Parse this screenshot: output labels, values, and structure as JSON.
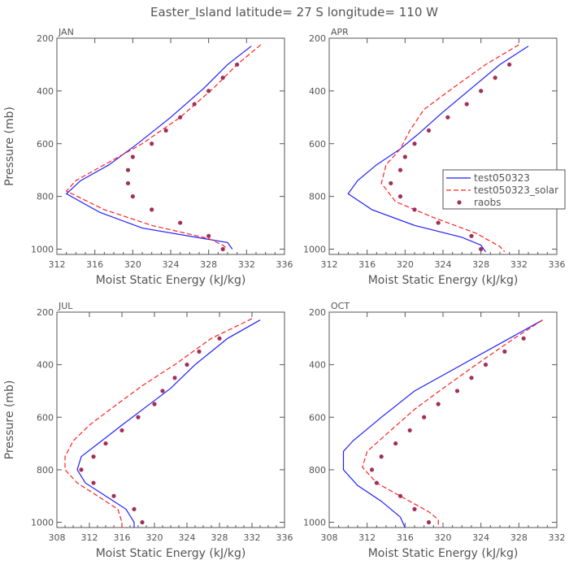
{
  "figure_title": "Easter_Island  latitude= 27 S longitude= 110 W",
  "colors": {
    "test": "#1f1fff",
    "solar": "#ff2020",
    "raobs": "#a0305a",
    "axis": "#555555"
  },
  "legend": {
    "entries": [
      "test050323",
      "test050323_solar",
      "raobs"
    ],
    "placement": "right side of APR panel"
  },
  "chart_data": [
    {
      "type": "line",
      "title": "JAN",
      "xlabel": "Moist Static Energy (kJ/kg)",
      "ylabel": "Pressure (mb)",
      "xlim": [
        312,
        336
      ],
      "ylim": [
        1020,
        200
      ],
      "y_inverted": true,
      "xticks": [
        312,
        316,
        320,
        324,
        328,
        332,
        336
      ],
      "yticks": [
        200,
        400,
        600,
        800,
        1000
      ],
      "series": [
        {
          "name": "test050323",
          "style": "solid",
          "color": "#1f1fff",
          "points": [
            [
              332.5,
              230
            ],
            [
              330,
              300
            ],
            [
              327.5,
              390
            ],
            [
              324,
              500
            ],
            [
              320.5,
              600
            ],
            [
              317.5,
              680
            ],
            [
              314.5,
              740
            ],
            [
              313,
              790
            ],
            [
              316.5,
              860
            ],
            [
              321,
              920
            ],
            [
              327.5,
              960
            ],
            [
              330,
              975
            ],
            [
              330.5,
              1000
            ]
          ]
        },
        {
          "name": "test050323_solar",
          "style": "dashed",
          "color": "#ff2020",
          "points": [
            [
              333.5,
              225
            ],
            [
              331,
              300
            ],
            [
              328.5,
              390
            ],
            [
              325,
              500
            ],
            [
              321,
              600
            ],
            [
              317,
              680
            ],
            [
              314,
              740
            ],
            [
              313,
              780
            ],
            [
              317,
              850
            ],
            [
              322,
              910
            ],
            [
              328,
              960
            ],
            [
              329.5,
              985
            ],
            [
              330,
              1000
            ]
          ]
        },
        {
          "name": "raobs",
          "style": "points",
          "color": "#a0305a",
          "points": [
            [
              331,
              300
            ],
            [
              329.5,
              350
            ],
            [
              328,
              400
            ],
            [
              326.5,
              450
            ],
            [
              325,
              500
            ],
            [
              323.5,
              550
            ],
            [
              322,
              600
            ],
            [
              320,
              650
            ],
            [
              319.5,
              700
            ],
            [
              319.5,
              750
            ],
            [
              320,
              800
            ],
            [
              322,
              850
            ],
            [
              325,
              900
            ],
            [
              328,
              950
            ],
            [
              329.5,
              1000
            ]
          ]
        }
      ]
    },
    {
      "type": "line",
      "title": "APR",
      "xlabel": "Moist Static Energy (kJ/kg)",
      "ylabel": "",
      "xlim": [
        312,
        336
      ],
      "ylim": [
        1020,
        200
      ],
      "y_inverted": true,
      "xticks": [
        312,
        316,
        320,
        324,
        328,
        332,
        336
      ],
      "yticks": [
        200,
        400,
        600,
        800,
        1000
      ],
      "series": [
        {
          "name": "test050323",
          "style": "solid",
          "color": "#1f1fff",
          "points": [
            [
              333,
              230
            ],
            [
              330,
              300
            ],
            [
              327,
              390
            ],
            [
              324,
              480
            ],
            [
              321.5,
              560
            ],
            [
              319.5,
              620
            ],
            [
              317,
              680
            ],
            [
              315,
              740
            ],
            [
              314,
              790
            ],
            [
              316.5,
              850
            ],
            [
              321,
              910
            ],
            [
              326,
              955
            ],
            [
              328,
              985
            ],
            [
              328.5,
              1010
            ]
          ]
        },
        {
          "name": "test050323_solar",
          "style": "dashed",
          "color": "#ff2020",
          "points": [
            [
              332,
              225
            ],
            [
              328.5,
              300
            ],
            [
              325,
              390
            ],
            [
              322,
              470
            ],
            [
              320.5,
              550
            ],
            [
              319.5,
              620
            ],
            [
              318,
              680
            ],
            [
              317.5,
              750
            ],
            [
              319,
              820
            ],
            [
              323,
              880
            ],
            [
              327.5,
              940
            ],
            [
              330,
              990
            ],
            [
              330.5,
              1010
            ]
          ]
        },
        {
          "name": "raobs",
          "style": "points",
          "color": "#a0305a",
          "points": [
            [
              331,
              300
            ],
            [
              329.5,
              350
            ],
            [
              328,
              400
            ],
            [
              326.5,
              450
            ],
            [
              324.5,
              500
            ],
            [
              322.5,
              550
            ],
            [
              321,
              600
            ],
            [
              320,
              650
            ],
            [
              319.5,
              700
            ],
            [
              318.5,
              750
            ],
            [
              319.5,
              800
            ],
            [
              321,
              850
            ],
            [
              323.5,
              900
            ],
            [
              327,
              950
            ],
            [
              328,
              1000
            ]
          ]
        }
      ]
    },
    {
      "type": "line",
      "title": "JUL",
      "xlabel": "Moist Static Energy (kJ/kg)",
      "ylabel": "Pressure (mb)",
      "xlim": [
        308,
        336
      ],
      "ylim": [
        1020,
        200
      ],
      "y_inverted": true,
      "xticks": [
        308,
        312,
        316,
        320,
        324,
        328,
        332,
        336
      ],
      "yticks": [
        200,
        400,
        600,
        800,
        1000
      ],
      "series": [
        {
          "name": "test050323",
          "style": "solid",
          "color": "#1f1fff",
          "points": [
            [
              333,
              230
            ],
            [
              329,
              300
            ],
            [
              325,
              400
            ],
            [
              322,
              490
            ],
            [
              319,
              560
            ],
            [
              316,
              630
            ],
            [
              313.5,
              690
            ],
            [
              311,
              750
            ],
            [
              310.5,
              800
            ],
            [
              311.5,
              850
            ],
            [
              314,
              900
            ],
            [
              316.5,
              950
            ],
            [
              317.5,
              1000
            ],
            [
              317.5,
              1020
            ]
          ]
        },
        {
          "name": "test050323_solar",
          "style": "dashed",
          "color": "#ff2020",
          "points": [
            [
              332,
              225
            ],
            [
              327,
              300
            ],
            [
              322.5,
              400
            ],
            [
              318.5,
              480
            ],
            [
              315,
              560
            ],
            [
              312,
              630
            ],
            [
              310,
              690
            ],
            [
              309,
              750
            ],
            [
              309,
              800
            ],
            [
              310.5,
              850
            ],
            [
              313,
              900
            ],
            [
              315.5,
              950
            ],
            [
              316,
              1000
            ],
            [
              316,
              1020
            ]
          ]
        },
        {
          "name": "raobs",
          "style": "points",
          "color": "#a0305a",
          "points": [
            [
              328,
              300
            ],
            [
              325.5,
              350
            ],
            [
              324,
              400
            ],
            [
              322.5,
              450
            ],
            [
              321,
              500
            ],
            [
              320,
              550
            ],
            [
              318,
              600
            ],
            [
              316,
              650
            ],
            [
              314,
              700
            ],
            [
              312.5,
              750
            ],
            [
              311,
              800
            ],
            [
              312.5,
              850
            ],
            [
              315,
              900
            ],
            [
              317.5,
              950
            ],
            [
              318.5,
              1000
            ]
          ]
        }
      ]
    },
    {
      "type": "line",
      "title": "OCT",
      "xlabel": "Moist Static Energy (kJ/kg)",
      "ylabel": "",
      "xlim": [
        308,
        332
      ],
      "ylim": [
        1020,
        200
      ],
      "y_inverted": true,
      "xticks": [
        308,
        312,
        316,
        320,
        324,
        328,
        332
      ],
      "yticks": [
        200,
        400,
        600,
        800,
        1000
      ],
      "series": [
        {
          "name": "test050323",
          "style": "solid",
          "color": "#1f1fff",
          "points": [
            [
              330.5,
              230
            ],
            [
              327,
              300
            ],
            [
              322,
              400
            ],
            [
              317,
              500
            ],
            [
              313.5,
              600
            ],
            [
              310.5,
              690
            ],
            [
              309.5,
              730
            ],
            [
              309.5,
              800
            ],
            [
              311,
              860
            ],
            [
              313.5,
              920
            ],
            [
              315.5,
              980
            ],
            [
              316,
              1020
            ]
          ]
        },
        {
          "name": "test050323_solar",
          "style": "dashed",
          "color": "#ff2020",
          "points": [
            [
              330.5,
              230
            ],
            [
              327.5,
              300
            ],
            [
              323.5,
              400
            ],
            [
              320,
              490
            ],
            [
              317,
              570
            ],
            [
              314.5,
              650
            ],
            [
              312,
              730
            ],
            [
              311.5,
              790
            ],
            [
              313,
              850
            ],
            [
              316,
              910
            ],
            [
              318.5,
              960
            ],
            [
              319.5,
              990
            ],
            [
              319.5,
              1020
            ]
          ]
        },
        {
          "name": "raobs",
          "style": "points",
          "color": "#a0305a",
          "points": [
            [
              328.5,
              300
            ],
            [
              326.5,
              350
            ],
            [
              324.5,
              400
            ],
            [
              323,
              450
            ],
            [
              321.5,
              500
            ],
            [
              319.5,
              550
            ],
            [
              318,
              600
            ],
            [
              316.5,
              650
            ],
            [
              315,
              700
            ],
            [
              313.5,
              750
            ],
            [
              312.5,
              800
            ],
            [
              313,
              850
            ],
            [
              315.5,
              900
            ],
            [
              317,
              950
            ],
            [
              318.5,
              1000
            ]
          ]
        }
      ]
    }
  ]
}
